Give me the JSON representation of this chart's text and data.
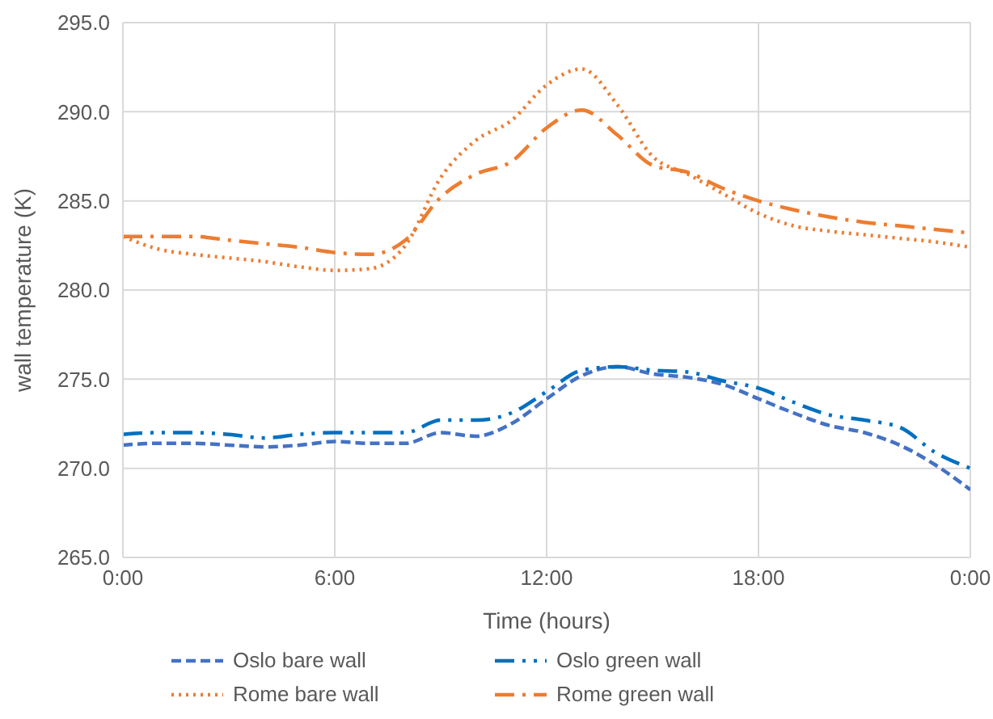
{
  "chart_data": {
    "type": "line",
    "xlabel": "Time (hours)",
    "ylabel": "wall temperature (K)",
    "x": [
      0,
      1,
      2,
      3,
      4,
      5,
      6,
      7,
      8,
      9,
      10,
      11,
      12,
      13,
      14,
      15,
      16,
      17,
      18,
      19,
      20,
      21,
      22,
      23,
      24
    ],
    "series": [
      {
        "name": "Oslo bare wall",
        "color": "#4472c4",
        "line_style": "dashed",
        "values": [
          271.3,
          271.4,
          271.4,
          271.3,
          271.2,
          271.3,
          271.5,
          271.4,
          271.4,
          272.0,
          271.8,
          272.5,
          273.9,
          275.2,
          275.7,
          275.3,
          275.1,
          274.7,
          273.9,
          273.1,
          272.4,
          272.0,
          271.3,
          270.2,
          268.8
        ]
      },
      {
        "name": "Oslo green wall",
        "color": "#0070c0",
        "line_style": "dashdotdot",
        "values": [
          271.9,
          272.0,
          272.0,
          271.9,
          271.7,
          271.9,
          272.0,
          272.0,
          272.0,
          272.7,
          272.7,
          273.1,
          274.3,
          275.5,
          275.7,
          275.5,
          275.4,
          274.9,
          274.5,
          273.7,
          273.0,
          272.7,
          272.3,
          270.9,
          270.0
        ]
      },
      {
        "name": "Rome bare wall",
        "color": "#ed7d31",
        "line_style": "dotted",
        "values": [
          283.0,
          282.3,
          282.0,
          281.8,
          281.6,
          281.3,
          281.1,
          281.2,
          282.5,
          286.3,
          288.4,
          289.5,
          291.5,
          292.4,
          290.4,
          287.5,
          286.5,
          285.4,
          284.3,
          283.6,
          283.3,
          283.1,
          282.9,
          282.7,
          282.4
        ]
      },
      {
        "name": "Rome green wall",
        "color": "#ed7d31",
        "line_style": "dashdot",
        "values": [
          283.0,
          283.0,
          283.0,
          282.8,
          282.6,
          282.4,
          282.1,
          282.0,
          282.8,
          285.2,
          286.5,
          287.2,
          289.1,
          290.1,
          288.7,
          287.0,
          286.6,
          285.7,
          285.0,
          284.5,
          284.1,
          283.8,
          283.6,
          283.4,
          283.2
        ]
      }
    ],
    "xlim": [
      0,
      24
    ],
    "xticks": [
      {
        "value": 0,
        "label": "0:00"
      },
      {
        "value": 6,
        "label": "6:00"
      },
      {
        "value": 12,
        "label": "12:00"
      },
      {
        "value": 18,
        "label": "18:00"
      },
      {
        "value": 24,
        "label": "0:00"
      }
    ],
    "ylim": [
      265,
      295
    ],
    "yticks": [
      {
        "value": 265,
        "label": "265.0"
      },
      {
        "value": 270,
        "label": "270.0"
      },
      {
        "value": 275,
        "label": "275.0"
      },
      {
        "value": 280,
        "label": "280.0"
      },
      {
        "value": 285,
        "label": "285.0"
      },
      {
        "value": 290,
        "label": "290.0"
      },
      {
        "value": 295,
        "label": "295.0"
      }
    ],
    "grid": true,
    "legend": "bottom",
    "marker": "none"
  }
}
